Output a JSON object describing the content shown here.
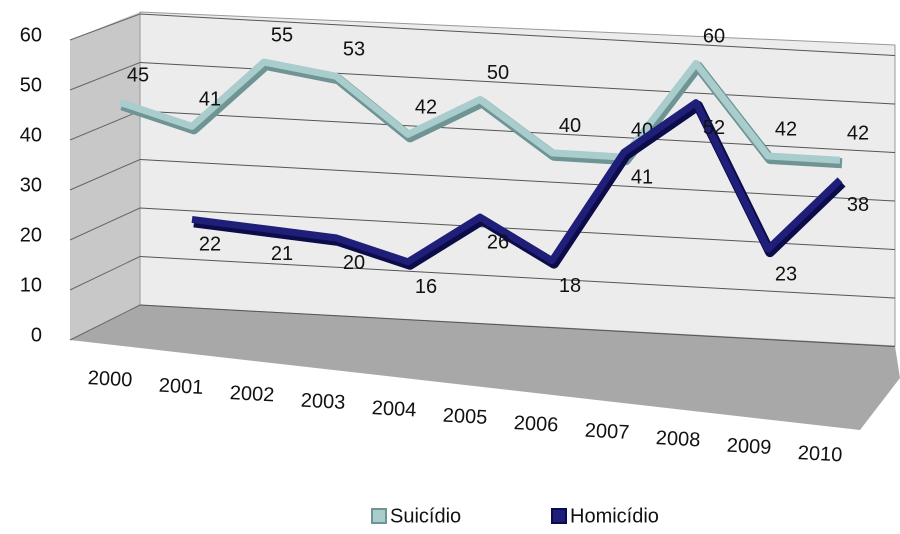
{
  "chart_data": {
    "type": "line",
    "categories": [
      "2000",
      "2001",
      "2002",
      "2003",
      "2004",
      "2005",
      "2006",
      "2007",
      "2008",
      "2009",
      "2010"
    ],
    "series": [
      {
        "name": "Suicídio",
        "color": "#a9cccc",
        "values": [
          45,
          41,
          55,
          53,
          42,
          50,
          40,
          40,
          60,
          42,
          42
        ]
      },
      {
        "name": "Homicídio",
        "color": "#1f1f7a",
        "values": [
          null,
          22,
          21,
          20,
          16,
          26,
          18,
          41,
          52,
          23,
          38
        ]
      }
    ],
    "ylim": [
      0,
      60
    ],
    "yticks": [
      0,
      10,
      20,
      30,
      40,
      50,
      60
    ],
    "grid": true,
    "legend": "bottom"
  }
}
